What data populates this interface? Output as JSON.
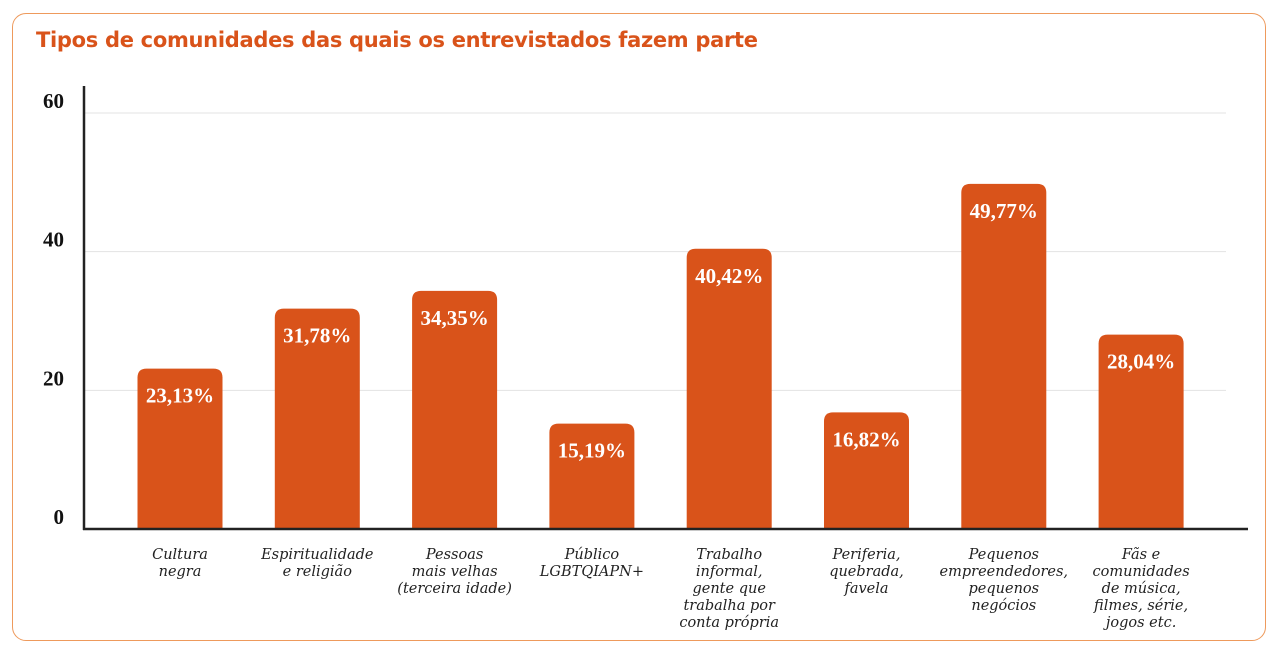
{
  "chart_data": {
    "type": "bar",
    "title": "Tipos de comunidades das quais os entrevistados fazem parte",
    "xlabel": "",
    "ylabel": "",
    "ylim": [
      0,
      60
    ],
    "yticks": [
      0,
      20,
      40,
      60
    ],
    "grid": true,
    "categories": [
      [
        "Cultura",
        "negra"
      ],
      [
        "Espiritualidade",
        "e religião"
      ],
      [
        "Pessoas",
        "mais velhas",
        "(terceira idade)"
      ],
      [
        "Público",
        "LGBTQIAPN+"
      ],
      [
        "Trabalho",
        "informal,",
        "gente que",
        "trabalha por",
        "conta própria"
      ],
      [
        "Periferia,",
        "quebrada,",
        "favela"
      ],
      [
        "Pequenos",
        "empreendedores,",
        "pequenos",
        "negócios"
      ],
      [
        "Fãs e",
        "comunidades",
        "de música,",
        "filmes, série,",
        "jogos etc."
      ]
    ],
    "values": [
      23.13,
      31.78,
      34.35,
      15.19,
      40.42,
      16.82,
      49.77,
      28.04
    ],
    "data_labels": [
      "23,13%",
      "31,78%",
      "34,35%",
      "15,19%",
      "40,42%",
      "16,82%",
      "49,77%",
      "28,04%"
    ],
    "colors": {
      "bar": "#d9531a",
      "title": "#d9531a",
      "border": "#ee9a5c",
      "grid": "#e3e3e3"
    }
  }
}
